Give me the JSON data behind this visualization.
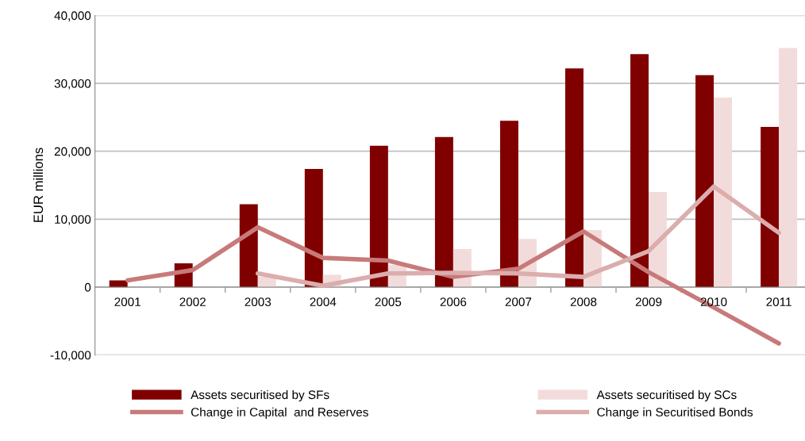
{
  "chart_data": {
    "type": "bar",
    "ylabel": "EUR millions",
    "categories": [
      "2001",
      "2002",
      "2003",
      "2004",
      "2005",
      "2006",
      "2007",
      "2008",
      "2009",
      "2010",
      "2011"
    ],
    "series": [
      {
        "name": "Assets securitised by SFs",
        "color": "#800000",
        "values": [
          1000,
          3500,
          12200,
          17400,
          20800,
          22100,
          24500,
          32200,
          34300,
          31200,
          23600
        ]
      },
      {
        "name": "Assets securitised by SCs",
        "color": "#f2dcdb",
        "values": [
          null,
          null,
          1500,
          1800,
          3300,
          5600,
          7100,
          8400,
          14000,
          27900,
          35200
        ]
      },
      {
        "name": "Change in Capital  and Reserves",
        "type": "line",
        "color": "#c87a7a",
        "values": [
          1000,
          2500,
          8800,
          4300,
          3900,
          1500,
          2700,
          8200,
          2200,
          -3000,
          -8300
        ]
      },
      {
        "name": "Change in Securitised Bonds",
        "type": "line",
        "color": "#dbadad",
        "values": [
          null,
          null,
          2000,
          200,
          2000,
          2100,
          2000,
          1500,
          5300,
          14800,
          8000
        ]
      }
    ],
    "ylim": [
      -10000,
      40000
    ],
    "yticks": [
      {
        "value": -10000,
        "label": "-10,000"
      },
      {
        "value": 0,
        "label": "0"
      },
      {
        "value": 10000,
        "label": "10,000"
      },
      {
        "value": 20000,
        "label": "20,000"
      },
      {
        "value": 30000,
        "label": "30,000"
      },
      {
        "value": 40000,
        "label": "40,000"
      }
    ],
    "grid": "y",
    "legend": "bottom",
    "marker": "none",
    "line_style": "solid"
  }
}
